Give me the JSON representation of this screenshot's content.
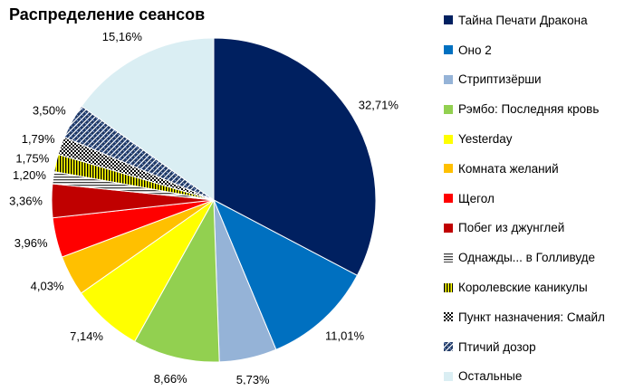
{
  "chart_data": {
    "type": "pie",
    "title": "Распределение сеансов",
    "legend_position": "right",
    "slices": [
      {
        "name": "Тайна Печати Дракона",
        "value": 32.71,
        "label": "32,71%",
        "color": "#002060",
        "pattern": "solid"
      },
      {
        "name": "Оно 2",
        "value": 11.01,
        "label": "11,01%",
        "color": "#0070c0",
        "pattern": "solid"
      },
      {
        "name": "Стриптизёрши",
        "value": 5.73,
        "label": "5,73%",
        "color": "#95b3d7",
        "pattern": "solid"
      },
      {
        "name": "Рэмбо: Последняя кровь",
        "value": 8.66,
        "label": "8,66%",
        "color": "#92d050",
        "pattern": "solid"
      },
      {
        "name": "Yesterday",
        "value": 7.14,
        "label": "7,14%",
        "color": "#ffff00",
        "pattern": "solid"
      },
      {
        "name": "Комната желаний",
        "value": 4.03,
        "label": "4,03%",
        "color": "#ffc000",
        "pattern": "solid"
      },
      {
        "name": "Щегол",
        "value": 3.96,
        "label": "3,96%",
        "color": "#ff0000",
        "pattern": "solid"
      },
      {
        "name": "Побег из джунглей",
        "value": 3.36,
        "label": "3,36%",
        "color": "#c00000",
        "pattern": "solid"
      },
      {
        "name": "Однажды... в Голливуде",
        "value": 1.2,
        "label": "1,20%",
        "color": "#404040",
        "pattern": "hlines"
      },
      {
        "name": "Королевские каникулы",
        "value": 1.75,
        "label": "1,75%",
        "color": "#000000",
        "pattern": "vlines-yellow"
      },
      {
        "name": "Пункт назначения: Смайл",
        "value": 1.79,
        "label": "1,79%",
        "color": "#000000",
        "pattern": "dots"
      },
      {
        "name": "Птичий дозор",
        "value": 3.5,
        "label": "3,50%",
        "color": "#1f3864",
        "pattern": "weave"
      },
      {
        "name": "Остальные",
        "value": 15.16,
        "label": "15,16%",
        "color": "#daeef3",
        "pattern": "solid"
      }
    ]
  }
}
